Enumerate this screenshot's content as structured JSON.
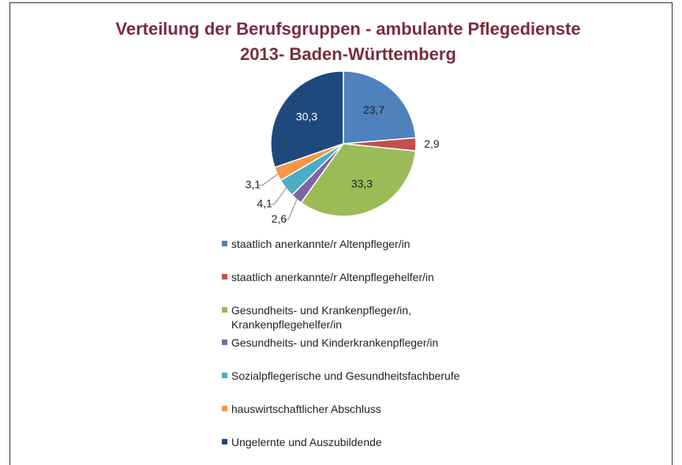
{
  "chart_data": {
    "type": "pie",
    "title": [
      "Verteilung der Berufsgruppen - ambulante Pflegedienste",
      "2013- Baden-Württemberg"
    ],
    "categories": [
      "staatlich anerkannte/r Altenpfleger/in",
      "staatlich anerkannte/r Altenpflegehelfer/in",
      "Gesundheits- und Krankenpfleger/in, Krankenpflegehelfer/in",
      "Gesundheits- und Kinderkrankenpfleger/in",
      "Sozialpflegerische und Gesundheitsfachberufe",
      "hauswirtschaftlicher Abschluss",
      "Ungelernte und Auszubildende"
    ],
    "values": [
      23.7,
      2.9,
      33.3,
      2.6,
      4.1,
      3.1,
      30.3
    ],
    "value_labels": [
      "23,7",
      "2,9",
      "33,3",
      "2,6",
      "4,1",
      "3,1",
      "30,3"
    ],
    "colors": [
      "#4f81bd",
      "#c0504d",
      "#9bbb59",
      "#8064a2",
      "#4bacc6",
      "#f79646",
      "#1f497d"
    ],
    "legend": "bottom"
  }
}
